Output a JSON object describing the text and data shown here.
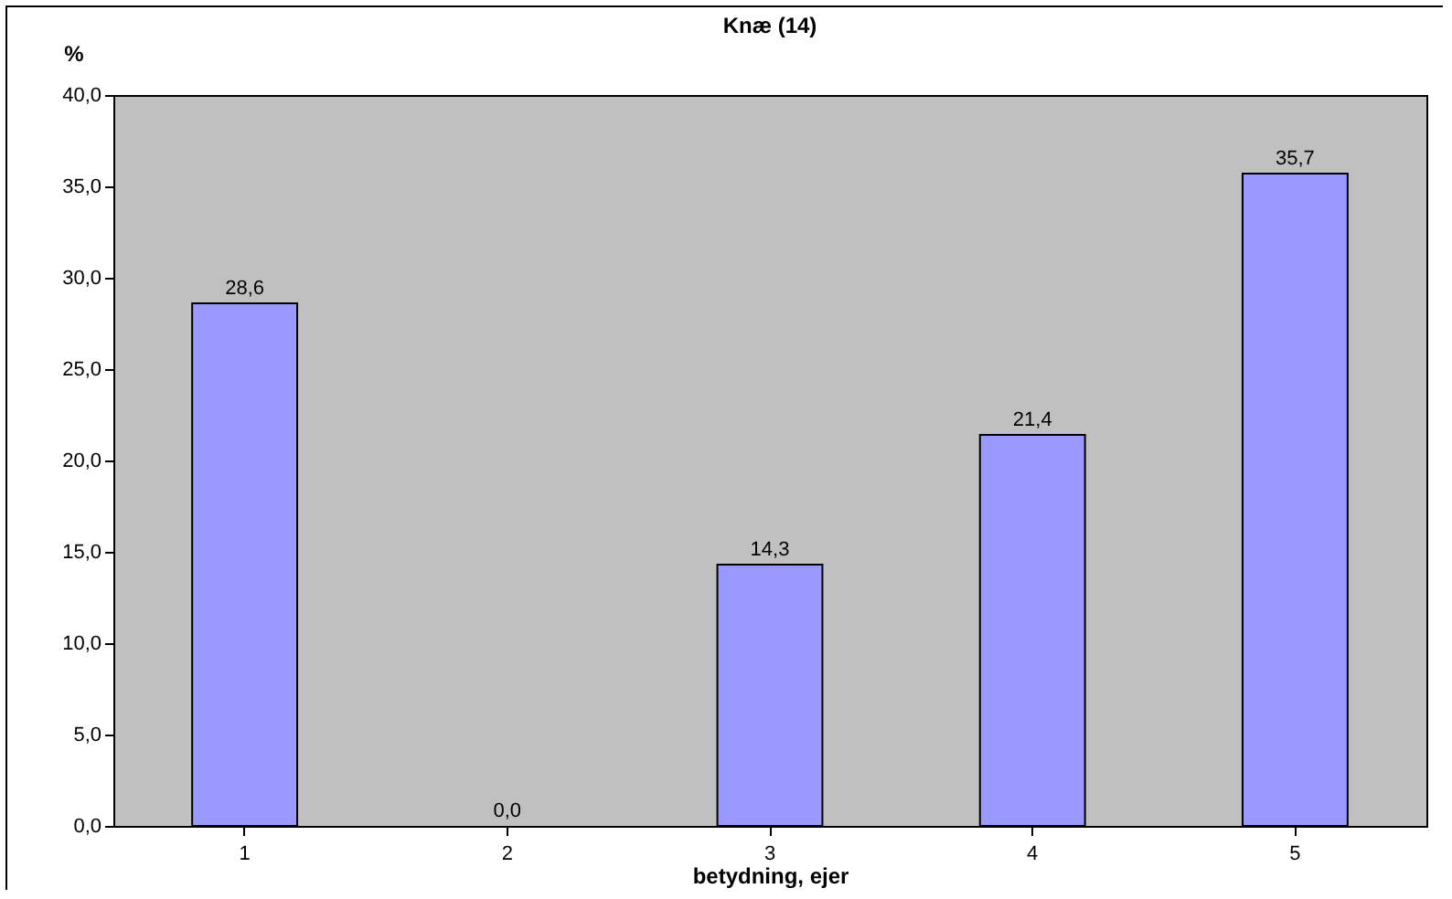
{
  "chart_data": {
    "type": "bar",
    "title": "Knæ (14)",
    "xlabel": "betydning, ejer",
    "ylabel": "%",
    "categories": [
      "1",
      "2",
      "3",
      "4",
      "5"
    ],
    "values": [
      28.6,
      0.0,
      14.3,
      21.4,
      35.7
    ],
    "value_labels": [
      "28,6",
      "0,0",
      "14,3",
      "21,4",
      "35,7"
    ],
    "color": "#9999ff",
    "ylim": [
      0,
      40
    ],
    "yticks": [
      {
        "value": 0,
        "label": "0,0"
      },
      {
        "value": 5,
        "label": "5,0"
      },
      {
        "value": 10,
        "label": "10,0"
      },
      {
        "value": 15,
        "label": "15,0"
      },
      {
        "value": 20,
        "label": "20,0"
      },
      {
        "value": 25,
        "label": "25,0"
      },
      {
        "value": 30,
        "label": "30,0"
      },
      {
        "value": 35,
        "label": "35,0"
      },
      {
        "value": 40,
        "label": "40,0"
      }
    ],
    "grid": false
  }
}
